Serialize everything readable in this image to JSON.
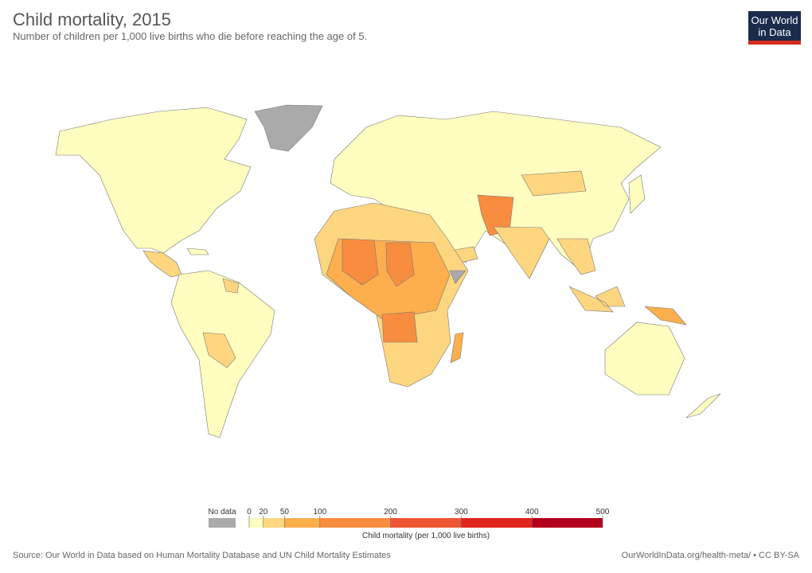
{
  "header": {
    "title": "Child mortality, 2015",
    "subtitle": "Number of children per 1,000 live births who die before reaching the age of 5.",
    "logo": [
      "Our World",
      "in Data"
    ]
  },
  "legend": {
    "no_data": "No data",
    "no_data_color": "#aaaaaa",
    "ticks": [
      0,
      20,
      50,
      100,
      200,
      300,
      400,
      500
    ],
    "colors": [
      "#fffdbf",
      "#fed680",
      "#fdae4d",
      "#f98d3f",
      "#ee5631",
      "#e0251e",
      "#b3001d"
    ],
    "label": "Child mortality (per 1,000 live births)"
  },
  "footer": {
    "source": "Source: Our World in Data based on Human Mortality Database and UN Child Mortality Estimates",
    "url": "OurWorldInData.org/health-meta/ • CC BY-SA"
  }
}
